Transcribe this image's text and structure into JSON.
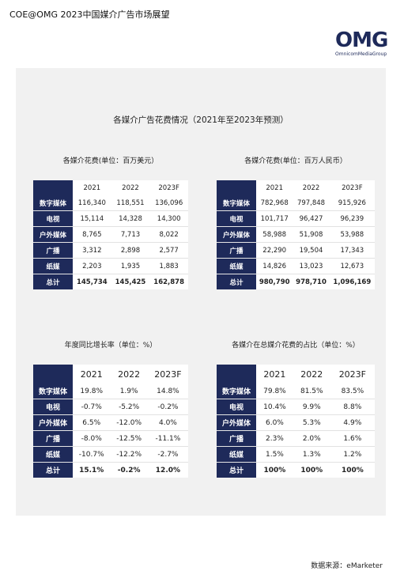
{
  "doc_title": "COE@OMG 2023中国媒介广告市场展望",
  "logo": {
    "text": "OMG",
    "sub": "OmnicomMediaGroup"
  },
  "panel_title": "各媒介广告花费情况（2021年至2023年预测）",
  "tables": {
    "usd": {
      "label": "各媒介花费(单位：百万美元）",
      "headers": [
        "2021",
        "2022",
        "2023F"
      ],
      "rows": [
        {
          "label": "数字媒体",
          "values": [
            "116,340",
            "118,551",
            "136,096"
          ]
        },
        {
          "label": "电视",
          "values": [
            "15,114",
            "14,328",
            "14,300"
          ]
        },
        {
          "label": "户外媒体",
          "values": [
            "8,765",
            "7,713",
            "8,022"
          ]
        },
        {
          "label": "广播",
          "values": [
            "3,312",
            "2,898",
            "2,577"
          ]
        },
        {
          "label": "纸媒",
          "values": [
            "2,203",
            "1,935",
            "1,883"
          ]
        },
        {
          "label": "总计",
          "values": [
            "145,734",
            "145,425",
            "162,878"
          ]
        }
      ]
    },
    "rmb": {
      "label": "各媒介花费(单位：百万人民币）",
      "headers": [
        "2021",
        "2022",
        "2023F"
      ],
      "rows": [
        {
          "label": "数字媒体",
          "values": [
            "782,968",
            "797,848",
            "915,926"
          ]
        },
        {
          "label": "电视",
          "values": [
            "101,717",
            "96,427",
            "96,239"
          ]
        },
        {
          "label": "户外媒体",
          "values": [
            "58,988",
            "51,908",
            "53,988"
          ]
        },
        {
          "label": "广播",
          "values": [
            "22,290",
            "19,504",
            "17,343"
          ]
        },
        {
          "label": "纸媒",
          "values": [
            "14,826",
            "13,023",
            "12,673"
          ]
        },
        {
          "label": "总计",
          "values": [
            "980,790",
            "978,710",
            "1,096,169"
          ]
        }
      ]
    },
    "growth": {
      "label": "年度同比增长率（单位：%）",
      "headers": [
        "2021",
        "2022",
        "2023F"
      ],
      "rows": [
        {
          "label": "数字媒体",
          "values": [
            "19.8%",
            "1.9%",
            "14.8%"
          ]
        },
        {
          "label": "电视",
          "values": [
            "-0.7%",
            "-5.2%",
            "-0.2%"
          ]
        },
        {
          "label": "户外媒体",
          "values": [
            "6.5%",
            "-12.0%",
            "4.0%"
          ]
        },
        {
          "label": "广播",
          "values": [
            "-8.0%",
            "-12.5%",
            "-11.1%"
          ]
        },
        {
          "label": "纸媒",
          "values": [
            "-10.7%",
            "-12.2%",
            "-2.7%"
          ]
        },
        {
          "label": "总计",
          "values": [
            "15.1%",
            "-0.2%",
            "12.0%"
          ]
        }
      ]
    },
    "share": {
      "label": "各媒介在总媒介花费的占比（单位：%）",
      "headers": [
        "2021",
        "2022",
        "2023F"
      ],
      "rows": [
        {
          "label": "数字媒体",
          "values": [
            "79.8%",
            "81.5%",
            "83.5%"
          ]
        },
        {
          "label": "电视",
          "values": [
            "10.4%",
            "9.9%",
            "8.8%"
          ]
        },
        {
          "label": "户外媒体",
          "values": [
            "6.0%",
            "5.3%",
            "4.9%"
          ]
        },
        {
          "label": "广播",
          "values": [
            "2.3%",
            "2.0%",
            "1.6%"
          ]
        },
        {
          "label": "纸媒",
          "values": [
            "1.5%",
            "1.3%",
            "1.2%"
          ]
        },
        {
          "label": "总计",
          "values": [
            "100%",
            "100%",
            "100%"
          ]
        }
      ]
    }
  },
  "source": "数据来源：eMarketer",
  "colors": {
    "navy": "#1e2a5a",
    "panel": "#f1f1f1"
  }
}
